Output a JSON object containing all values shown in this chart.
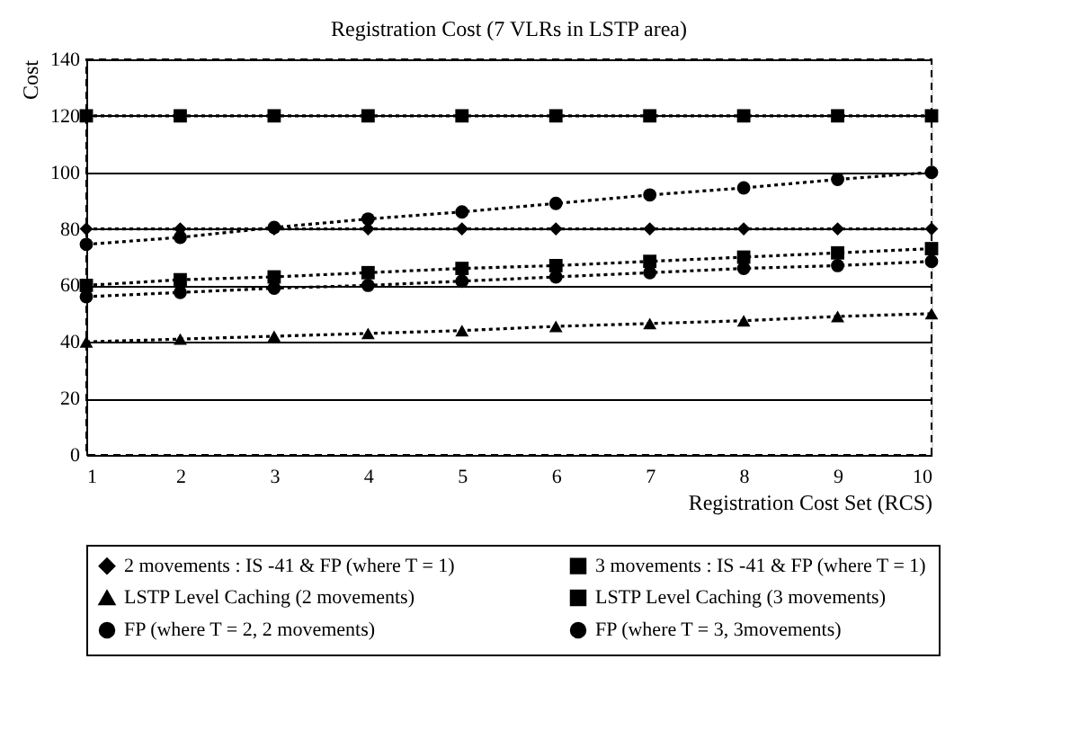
{
  "chart_data": {
    "type": "line",
    "title": "Registration Cost (7  VLRs in LSTP area)",
    "xlabel": "Registration Cost Set (RCS)",
    "ylabel": "Cost",
    "x": [
      1,
      2,
      3,
      4,
      5,
      6,
      7,
      8,
      9,
      10
    ],
    "xlim": [
      1,
      10
    ],
    "xticks": [
      1,
      2,
      3,
      4,
      5,
      6,
      7,
      8,
      9,
      10
    ],
    "ylim": [
      0,
      140
    ],
    "yticks": [
      0,
      20,
      40,
      60,
      80,
      100,
      120,
      140
    ],
    "grid": "y",
    "legend": "bottom",
    "line_style": "dotted",
    "series": [
      {
        "name": "2 movements : IS -41 & FP (where T = 1)",
        "color": "#000000",
        "marker": "diamond",
        "values": [
          80,
          80,
          80,
          80,
          80,
          80,
          80,
          80,
          80,
          80
        ]
      },
      {
        "name": "3 movements : IS -41 & FP (where T = 1)",
        "color": "#000000",
        "marker": "square",
        "values": [
          120,
          120,
          120,
          120,
          120,
          120,
          120,
          120,
          120,
          120
        ]
      },
      {
        "name": "LSTP Level Caching (2 movements)",
        "color": "#000000",
        "marker": "triangle",
        "values": [
          40,
          41,
          42,
          43,
          44,
          45.5,
          46.5,
          47.5,
          49,
          50
        ]
      },
      {
        "name": "LSTP Level Caching (3 movements)",
        "color": "#000000",
        "marker": "square",
        "values": [
          60,
          62,
          63,
          64.5,
          66,
          67,
          68.5,
          70,
          71.5,
          73
        ]
      },
      {
        "name": "FP (where T = 2, 2 movements)",
        "color": "#000000",
        "marker": "circle",
        "values": [
          56,
          57.5,
          59,
          60,
          61.5,
          63,
          64.5,
          66,
          67,
          68.5
        ]
      },
      {
        "name": "FP (where T = 3, 3movements)",
        "color": "#000000",
        "marker": "circle",
        "values": [
          74.5,
          77,
          80.5,
          83.5,
          86,
          89,
          92,
          94.5,
          97.5,
          100
        ]
      }
    ]
  }
}
